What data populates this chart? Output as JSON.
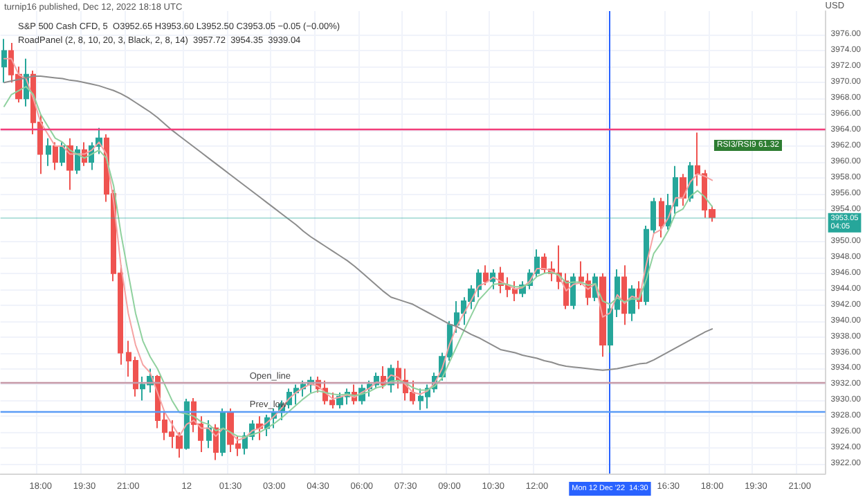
{
  "chart_data": {
    "type": "candlestick",
    "title": "S&P 500 Cash CFD, 5  O3952.65 H3953.60 L3952.50 C3953.05 −0.05 (−0.00%)",
    "subtitle": "RoadPanel (2, 8, 10, 20, 3, Black, 2, 8, 14)  3957.72  3954.35  3939.04",
    "ylabel": "USD",
    "annotations": [
      "turnip16 published, Dec 12, 2022 18:18 UTC",
      "RSI3/RSI9 61.32"
    ],
    "categories": [
      null,
      null,
      null,
      null,
      null,
      "18:00",
      null,
      null,
      null,
      null,
      null,
      "19:30",
      null,
      null,
      null,
      null,
      null,
      "21:00",
      null,
      null,
      null,
      null,
      null,
      null,
      null,
      "12",
      null,
      null,
      null,
      null,
      null,
      "01:30",
      null,
      null,
      null,
      null,
      null,
      "03:00",
      null,
      null,
      null,
      null,
      null,
      "04:30",
      null,
      null,
      null,
      null,
      null,
      "06:00",
      null,
      null,
      null,
      null,
      null,
      "07:30",
      null,
      null,
      null,
      null,
      null,
      "09:00",
      null,
      null,
      null,
      null,
      null,
      "10:30",
      null,
      null,
      null,
      null,
      null,
      "12:00",
      null,
      null,
      null,
      null,
      null,
      null,
      null,
      null,
      null,
      "Mon 12 Dec '22  14:30",
      null,
      null,
      null,
      null,
      null,
      null,
      null,
      "16:30",
      null,
      null,
      null,
      null,
      null,
      "18:00",
      null,
      null,
      null,
      null,
      null,
      "19:30",
      null,
      null,
      null,
      null,
      null,
      "21:00",
      null,
      null,
      null
    ],
    "ohlc": [
      [
        3972,
        3975.5,
        3970,
        3974
      ],
      [
        3974,
        3975,
        3970,
        3971
      ],
      [
        3971,
        3972,
        3967.5,
        3968
      ],
      [
        3968,
        3973,
        3967,
        3971
      ],
      [
        3971,
        3971.5,
        3963.5,
        3965
      ],
      [
        3965,
        3966,
        3958.5,
        3961
      ],
      [
        3961,
        3963,
        3959.5,
        3962
      ],
      [
        3962,
        3962.5,
        3959,
        3960
      ],
      [
        3960,
        3962.5,
        3959.5,
        3962
      ],
      [
        3962,
        3963,
        3956.5,
        3959
      ],
      [
        3959,
        3962,
        3958.5,
        3961.5
      ],
      [
        3961.5,
        3962.5,
        3959.5,
        3960
      ],
      [
        3960,
        3962.5,
        3959,
        3962
      ],
      [
        3962,
        3964.3,
        3961,
        3963
      ],
      [
        3963,
        3963.5,
        3955,
        3956
      ],
      [
        3956,
        3956.5,
        3945,
        3946
      ],
      [
        3946,
        3947,
        3934.5,
        3936
      ],
      [
        3936,
        3937.5,
        3933,
        3935
      ],
      [
        3935,
        3935.5,
        3930.5,
        3931.5
      ],
      [
        3931.5,
        3933,
        3930,
        3932
      ],
      [
        3932,
        3934,
        3931,
        3933
      ],
      [
        3933,
        3933.2,
        3926.5,
        3927.5
      ],
      [
        3927.5,
        3928.5,
        3925,
        3926
      ],
      [
        3926,
        3927.5,
        3924,
        3925.5
      ],
      [
        3925.5,
        3926,
        3922.8,
        3924
      ],
      [
        3924,
        3930.2,
        3923.8,
        3929.8
      ],
      [
        3929.8,
        3930.3,
        3926,
        3927
      ],
      [
        3927,
        3928,
        3923.5,
        3925
      ],
      [
        3925,
        3927.5,
        3924,
        3926.5
      ],
      [
        3926.5,
        3927,
        3922.5,
        3923.5
      ],
      [
        3923.5,
        3929,
        3923,
        3928.5
      ],
      [
        3928.5,
        3929,
        3923.5,
        3924.5
      ],
      [
        3924.5,
        3925.5,
        3923,
        3924
      ],
      [
        3924,
        3926,
        3923.2,
        3925.5
      ],
      [
        3925.5,
        3927.5,
        3925,
        3927
      ],
      [
        3927,
        3928,
        3925,
        3926.5
      ],
      [
        3926.5,
        3928.2,
        3925.5,
        3927.8
      ],
      [
        3927.8,
        3929,
        3926.5,
        3928.5
      ],
      [
        3928.5,
        3930,
        3927.5,
        3929.5
      ],
      [
        3929.5,
        3931.5,
        3929,
        3931
      ],
      [
        3931,
        3932,
        3929.5,
        3931.5
      ],
      [
        3931.5,
        3932.5,
        3930.5,
        3932
      ],
      [
        3932,
        3933,
        3931,
        3932.5
      ],
      [
        3932.5,
        3933,
        3931,
        3931.5
      ],
      [
        3931.5,
        3932.5,
        3929.5,
        3930
      ],
      [
        3930,
        3931,
        3929,
        3929.5
      ],
      [
        3929.5,
        3931,
        3929,
        3930.5
      ],
      [
        3930.5,
        3931.5,
        3929.5,
        3931
      ],
      [
        3931,
        3932,
        3929.5,
        3930
      ],
      [
        3930,
        3932,
        3929.5,
        3931.5
      ],
      [
        3931.5,
        3932.5,
        3930.5,
        3932
      ],
      [
        3932,
        3933.5,
        3931.5,
        3933
      ],
      [
        3933,
        3934.3,
        3931.5,
        3932
      ],
      [
        3932,
        3934.5,
        3931,
        3934
      ],
      [
        3934,
        3935,
        3931.5,
        3932.5
      ],
      [
        3932.5,
        3934,
        3930,
        3931
      ],
      [
        3931,
        3932.5,
        3929.5,
        3930
      ],
      [
        3930,
        3931.5,
        3928.8,
        3930.5
      ],
      [
        3930.5,
        3932,
        3929,
        3931.5
      ],
      [
        3931.5,
        3933.5,
        3931,
        3933
      ],
      [
        3933,
        3936,
        3932.5,
        3935.5
      ],
      [
        3935.5,
        3940,
        3935,
        3939.5
      ],
      [
        3939.5,
        3942.5,
        3938.5,
        3941
      ],
      [
        3941,
        3943,
        3939.5,
        3942.5
      ],
      [
        3942.5,
        3944.5,
        3941.5,
        3944
      ],
      [
        3944,
        3946.5,
        3943,
        3946
      ],
      [
        3946,
        3947,
        3944.5,
        3945
      ],
      [
        3945,
        3946.5,
        3944,
        3946
      ],
      [
        3946,
        3946.8,
        3943.5,
        3944.5
      ],
      [
        3944.5,
        3945.5,
        3943,
        3944
      ],
      [
        3944,
        3945,
        3942.5,
        3943.5
      ],
      [
        3943.5,
        3945,
        3943,
        3944.5
      ],
      [
        3944.5,
        3946.5,
        3944,
        3946
      ],
      [
        3946,
        3949,
        3945.5,
        3948
      ],
      [
        3948,
        3948.5,
        3946,
        3946.5
      ],
      [
        3946.5,
        3947.5,
        3945,
        3946
      ],
      [
        3946,
        3949.5,
        3944,
        3945
      ],
      [
        3945,
        3946,
        3941.5,
        3942
      ],
      [
        3942,
        3946,
        3941.5,
        3945.5
      ],
      [
        3945.5,
        3947.5,
        3944.5,
        3945
      ],
      [
        3945,
        3946,
        3942,
        3943
      ],
      [
        3943,
        3946,
        3942.5,
        3945.5
      ],
      [
        3945.5,
        3946,
        3935.5,
        3937
      ],
      [
        3937,
        3942,
        3936,
        3941.5
      ],
      [
        3941.5,
        3946.5,
        3940.5,
        3945.5
      ],
      [
        3945.5,
        3947,
        3939.5,
        3941
      ],
      [
        3941,
        3944.5,
        3940,
        3944
      ],
      [
        3944,
        3945,
        3941.5,
        3942.5
      ],
      [
        3942.5,
        3952,
        3942,
        3951.5
      ],
      [
        3951.5,
        3955.5,
        3951,
        3955
      ],
      [
        3955,
        3955.5,
        3950.5,
        3952
      ],
      [
        3952,
        3956,
        3951.5,
        3954.5
      ],
      [
        3954.5,
        3959.5,
        3953.5,
        3958
      ],
      [
        3958,
        3958.5,
        3954.5,
        3955.5
      ],
      [
        3955.5,
        3960,
        3955,
        3959.5
      ],
      [
        3959.5,
        3963.7,
        3957,
        3958.5
      ],
      [
        3958.5,
        3959,
        3953,
        3954
      ],
      [
        3954,
        3954.5,
        3952.5,
        3953.05
      ],
      null,
      null,
      null,
      null,
      null,
      null,
      null,
      null,
      null,
      null,
      null,
      null,
      null,
      null,
      null
    ],
    "colors": [
      "#26a69a",
      "#ef5350",
      "#ef5350",
      "#26a69a",
      "#ef5350",
      "#ef5350",
      "#26a69a",
      "#ef5350",
      "#26a69a",
      "#ef5350",
      "#26a69a",
      "#ef5350",
      "#26a69a",
      "#26a69a",
      "#ef5350",
      "#ef5350",
      "#ef5350",
      "#ef5350",
      "#ef5350",
      "#26a69a",
      "#26a69a",
      "#ef5350",
      "#ef5350",
      "#ef5350",
      "#ef5350",
      "#26a69a",
      "#ef5350",
      "#ef5350",
      "#26a69a",
      "#ef5350",
      "#26a69a",
      "#ef5350",
      "#ef5350",
      "#26a69a",
      "#26a69a",
      "#ef5350",
      "#26a69a",
      "#26a69a",
      "#26a69a",
      "#26a69a",
      "#26a69a",
      "#26a69a",
      "#26a69a",
      "#ef5350",
      "#ef5350",
      "#ef5350",
      "#26a69a",
      "#26a69a",
      "#ef5350",
      "#26a69a",
      "#26a69a",
      "#26a69a",
      "#ef5350",
      "#26a69a",
      "#ef5350",
      "#ef5350",
      "#ef5350",
      "#26a69a",
      "#26a69a",
      "#26a69a",
      "#26a69a",
      "#26a69a",
      "#26a69a",
      "#26a69a",
      "#26a69a",
      "#26a69a",
      "#ef5350",
      "#26a69a",
      "#ef5350",
      "#ef5350",
      "#ef5350",
      "#26a69a",
      "#26a69a",
      "#26a69a",
      "#ef5350",
      "#ef5350",
      "#ef5350",
      "#ef5350",
      "#26a69a",
      "#ef5350",
      "#ef5350",
      "#26a69a",
      "#ef5350",
      "#26a69a",
      "#26a69a",
      "#ef5350",
      "#26a69a",
      "#ef5350",
      "#26a69a",
      "#26a69a",
      "#ef5350",
      "#26a69a",
      "#26a69a",
      "#ef5350",
      "#26a69a",
      "#ef5350",
      "#ef5350",
      "#ef5350",
      null,
      null,
      null,
      null,
      null,
      null,
      null,
      null,
      null,
      null,
      null,
      null,
      null,
      null,
      null
    ],
    "series": [
      {
        "type": "line",
        "color": "#f5a3a3",
        "values": [
          3973,
          3973,
          3971,
          3970.5,
          3968,
          3965,
          3963.5,
          3962,
          3962,
          3961,
          3961,
          3961,
          3961.5,
          3962.5,
          3961,
          3955,
          3947,
          3941,
          3937,
          3934.5,
          3933.5,
          3931,
          3928.5,
          3927,
          3925.5,
          3927,
          3927.5,
          3926.5,
          3926.5,
          3925.5,
          3926.5,
          3926,
          3925,
          3925.3,
          3926.2,
          3926.5,
          3927.2,
          3928,
          3929,
          3930.2,
          3931,
          3931.6,
          3932.1,
          3931.8,
          3931,
          3930.2,
          3930.4,
          3930.7,
          3930.4,
          3931,
          3931.5,
          3932.3,
          3932.2,
          3933.2,
          3932.9,
          3932,
          3931,
          3930.8,
          3931.2,
          3932.2,
          3934,
          3937,
          3939.3,
          3941,
          3942.6,
          3944.4,
          3944.8,
          3945.5,
          3945,
          3944.5,
          3944,
          3944.2,
          3945,
          3946.6,
          3946.6,
          3946.3,
          3945.7,
          3943.8,
          3944.6,
          3944.8,
          3944,
          3944.7,
          3940.5,
          3941,
          3943.3,
          3942.2,
          3943.1,
          3942.8,
          3947.2,
          3951,
          3951.5,
          3953,
          3955.5,
          3955.5,
          3957.5,
          3958.5,
          3958.2,
          3957.7,
          null,
          null,
          null,
          null,
          null,
          null,
          null,
          null,
          null,
          null,
          null,
          null,
          null,
          null,
          null
        ]
      },
      {
        "type": "line",
        "color": "#8fd19e",
        "values": [
          3967,
          3968.5,
          3969,
          3969.5,
          3968.5,
          3966,
          3964.5,
          3963,
          3962.5,
          3961.5,
          3961,
          3960.5,
          3961,
          3961.5,
          3960.5,
          3957,
          3951,
          3946,
          3941,
          3937.5,
          3935.5,
          3934,
          3932,
          3930,
          3928.5,
          3928.3,
          3928,
          3927.3,
          3927,
          3926.2,
          3926.5,
          3926,
          3925.5,
          3925.4,
          3925.7,
          3926,
          3926.5,
          3927.1,
          3927.8,
          3928.6,
          3929.4,
          3930.2,
          3930.9,
          3931.2,
          3931,
          3930.8,
          3930.7,
          3930.8,
          3930.6,
          3930.8,
          3931.1,
          3931.6,
          3931.8,
          3932.4,
          3932.5,
          3932.2,
          3931.6,
          3931.3,
          3931.3,
          3931.8,
          3932.8,
          3934.8,
          3936.8,
          3938.8,
          3940.7,
          3942.6,
          3943.6,
          3944.6,
          3944.7,
          3944.6,
          3944.3,
          3944.3,
          3944.7,
          3945.6,
          3946,
          3946.1,
          3945.8,
          3944.8,
          3944.9,
          3944.9,
          3944.5,
          3944.7,
          3942.5,
          3942.1,
          3942.9,
          3942.4,
          3942.8,
          3942.7,
          3945.3,
          3948.5,
          3949.8,
          3951.4,
          3953.6,
          3954.1,
          3955.7,
          3956.4,
          3955.6,
          3954.4,
          null,
          null,
          null,
          null,
          null,
          null,
          null,
          null,
          null,
          null,
          null,
          null,
          null,
          null,
          null
        ]
      },
      {
        "type": "line",
        "color": "#8c8c8c",
        "values": [
          3970,
          3970.2,
          3970.4,
          3970.6,
          3970.8,
          3970.8,
          3970.7,
          3970.6,
          3970.5,
          3970.3,
          3970.2,
          3970,
          3969.8,
          3969.6,
          3969.3,
          3969,
          3968.6,
          3968.1,
          3967.5,
          3966.9,
          3966.3,
          3965.6,
          3964.8,
          3964,
          3963.3,
          3962.6,
          3961.9,
          3961.2,
          3960.5,
          3959.8,
          3959.1,
          3958.4,
          3957.7,
          3957,
          3956.3,
          3955.6,
          3954.9,
          3954.2,
          3953.5,
          3952.8,
          3952.1,
          3951.3,
          3950.6,
          3950,
          3949.4,
          3948.8,
          3948.2,
          3947.6,
          3946.9,
          3946.1,
          3945.3,
          3944.5,
          3943.7,
          3943,
          3942.7,
          3942.4,
          3942.1,
          3941.6,
          3941.1,
          3940.6,
          3940.1,
          3939.6,
          3939.3,
          3938.8,
          3938.3,
          3937.9,
          3937.4,
          3936.9,
          3936.4,
          3936.2,
          3936,
          3935.7,
          3935.5,
          3935.3,
          3935,
          3934.8,
          3934.5,
          3934.3,
          3934.2,
          3934.1,
          3934,
          3933.9,
          3933.8,
          3933.9,
          3934,
          3934.2,
          3934.4,
          3934.6,
          3934.7,
          3935.1,
          3935.6,
          3936.1,
          3936.6,
          3937.1,
          3937.6,
          3938.1,
          3938.6,
          3939,
          null,
          null,
          null,
          null,
          null,
          null,
          null,
          null,
          null,
          null,
          null,
          null,
          null,
          null,
          null
        ]
      }
    ],
    "ylim": [
      3920.8,
      3979
    ],
    "yticks": [
      {
        "value": 3922,
        "label": "3922.00"
      },
      {
        "value": 3924,
        "label": "3924.00"
      },
      {
        "value": 3926,
        "label": "3926.00"
      },
      {
        "value": 3928,
        "label": "3928.00"
      },
      {
        "value": 3930,
        "label": "3930.00"
      },
      {
        "value": 3932,
        "label": "3932.00"
      },
      {
        "value": 3934,
        "label": "3934.00"
      },
      {
        "value": 3936,
        "label": "3936.00"
      },
      {
        "value": 3938,
        "label": "3938.00"
      },
      {
        "value": 3940,
        "label": "3940.00"
      },
      {
        "value": 3942,
        "label": "3942.00"
      },
      {
        "value": 3944,
        "label": "3944.00"
      },
      {
        "value": 3946,
        "label": "3946.00"
      },
      {
        "value": 3948,
        "label": "3948.00"
      },
      {
        "value": 3950,
        "label": "3950.00"
      },
      {
        "value": 3954,
        "label": "3954.00"
      },
      {
        "value": 3956,
        "label": "3956.00"
      },
      {
        "value": 3958,
        "label": "3958.00"
      },
      {
        "value": 3960,
        "label": "3960.00"
      },
      {
        "value": 3962,
        "label": "3962.00"
      },
      {
        "value": 3964,
        "label": "3964.00"
      },
      {
        "value": 3966,
        "label": "3966.00"
      },
      {
        "value": 3968,
        "label": "3968.00"
      },
      {
        "value": 3970,
        "label": "3970.00"
      },
      {
        "value": 3972,
        "label": "3972.00"
      },
      {
        "value": 3974,
        "label": "3974.00"
      },
      {
        "value": 3976,
        "label": "3976.00"
      }
    ],
    "ref_lines": [
      {
        "axis": "y",
        "value": 3964.2,
        "color": "#f23d7a"
      },
      {
        "axis": "y",
        "value": 3932.2,
        "label": "Open_line",
        "color": "#c79aa8"
      },
      {
        "axis": "y",
        "value": 3928.6,
        "label": "Prev_low",
        "color": "#5b9cf6"
      },
      {
        "axis": "y",
        "value": 3953.05,
        "label": "3953.05\n04:05",
        "color": "#26a69a"
      },
      {
        "axis": "x",
        "value": "Mon 12 Dec '22  14:30",
        "color": "#2962ff"
      }
    ],
    "grid": true,
    "marker": "none",
    "line_style": "solid"
  }
}
